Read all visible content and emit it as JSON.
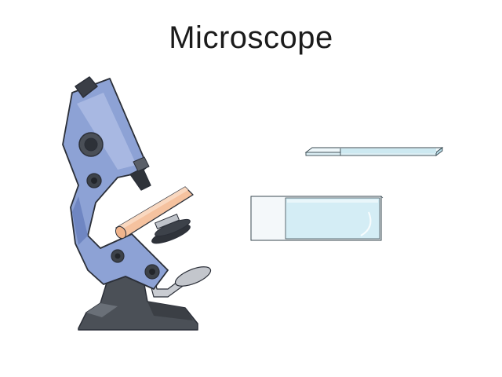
{
  "slide": {
    "title": "Microscope"
  },
  "illustrations": {
    "microscope_icon": "microscope-icon",
    "slide_side_view_icon": "glass-slide-side-view-icon",
    "slide_top_view_icon": "glass-slide-with-cover-slip-icon"
  },
  "colors": {
    "body_blue": "#8ea3d6",
    "base_dark": "#4a4f55",
    "stage_peach": "#f5c3a0",
    "glass_blue": "#d7eef5"
  }
}
